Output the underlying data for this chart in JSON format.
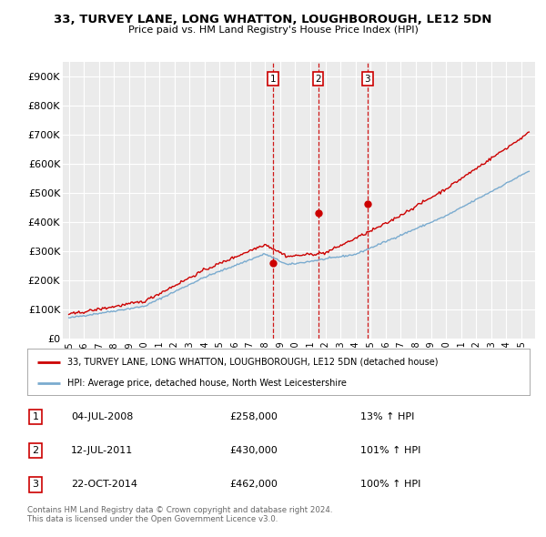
{
  "title": "33, TURVEY LANE, LONG WHATTON, LOUGHBOROUGH, LE12 5DN",
  "subtitle": "Price paid vs. HM Land Registry's House Price Index (HPI)",
  "ylim": [
    0,
    950000
  ],
  "yticks": [
    0,
    100000,
    200000,
    300000,
    400000,
    500000,
    600000,
    700000,
    800000,
    900000
  ],
  "ytick_labels": [
    "£0",
    "£100K",
    "£200K",
    "£300K",
    "£400K",
    "£500K",
    "£600K",
    "£700K",
    "£800K",
    "£900K"
  ],
  "bg_color": "#ffffff",
  "plot_bg_color": "#ebebeb",
  "grid_color": "#ffffff",
  "sale_color": "#cc0000",
  "hpi_color": "#7aabcf",
  "vline_color": "#cc0000",
  "transactions": [
    {
      "label": "1",
      "date_num": 2008.52,
      "price": 258000,
      "hpi_pct": "13%",
      "date_str": "04-JUL-2008"
    },
    {
      "label": "2",
      "date_num": 2011.52,
      "price": 430000,
      "hpi_pct": "101%",
      "date_str": "12-JUL-2011"
    },
    {
      "label": "3",
      "date_num": 2014.8,
      "price": 462000,
      "hpi_pct": "100%",
      "date_str": "22-OCT-2014"
    }
  ],
  "legend_sale_label": "33, TURVEY LANE, LONG WHATTON, LOUGHBOROUGH, LE12 5DN (detached house)",
  "legend_hpi_label": "HPI: Average price, detached house, North West Leicestershire",
  "footer1": "Contains HM Land Registry data © Crown copyright and database right 2024.",
  "footer2": "This data is licensed under the Open Government Licence v3.0.",
  "xlim": [
    1994.6,
    2025.9
  ],
  "xtick_start": 1995,
  "xtick_end": 2026
}
